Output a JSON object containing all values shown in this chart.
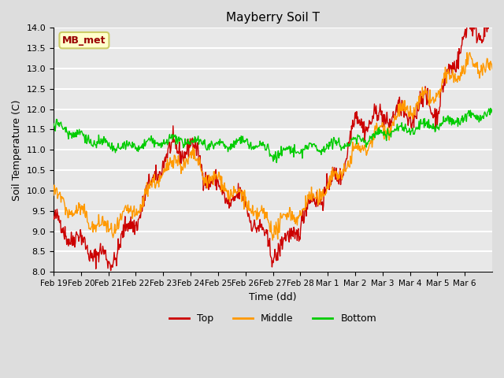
{
  "title": "Mayberry Soil T",
  "xlabel": "Time (dd)",
  "ylabel": "Soil Temperature (C)",
  "ylim": [
    8.0,
    14.0
  ],
  "yticks": [
    8.0,
    8.5,
    9.0,
    9.5,
    10.0,
    10.5,
    11.0,
    11.5,
    12.0,
    12.5,
    13.0,
    13.5,
    14.0
  ],
  "colors": {
    "top": "#cc0000",
    "middle": "#ff9900",
    "bottom": "#00cc00",
    "background": "#e8e8e8",
    "grid": "#ffffff"
  },
  "legend_label": "MB_met",
  "legend_box_facecolor": "#ffffcc",
  "legend_box_edgecolor": "#cccc66",
  "legend_text_color": "#990000",
  "series_labels": [
    "Top",
    "Middle",
    "Bottom"
  ],
  "x_tick_labels": [
    "Feb 19",
    "Feb 20",
    "Feb 21",
    "Feb 22",
    "Feb 23",
    "Feb 24",
    "Feb 25",
    "Feb 26",
    "Feb 27",
    "Feb 28",
    "Mar 1",
    "Mar 2",
    "Mar 3",
    "Mar 4",
    "Mar 5",
    "Mar 6"
  ],
  "fig_facecolor": "#dddddd"
}
